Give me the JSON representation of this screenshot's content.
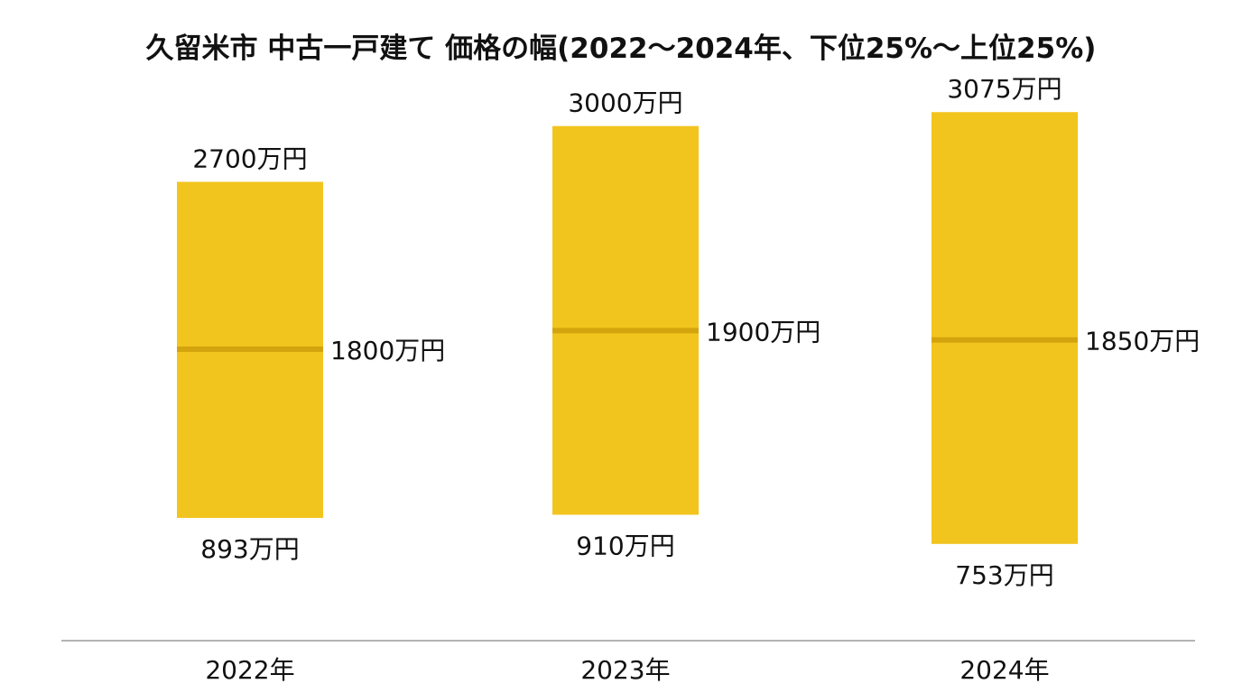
{
  "chart_data": {
    "type": "bar",
    "title": "久留米市 中古一戸建て 価格の幅(2022〜2024年、下位25%〜上位25%)",
    "xlabel": "",
    "ylabel": "",
    "unit": "万円",
    "categories": [
      "2022年",
      "2023年",
      "2024年"
    ],
    "series": [
      {
        "name": "",
        "values": [
          893,
          910,
          753
        ]
      },
      {
        "name": "",
        "values": [
          1800,
          1900,
          1850
        ]
      },
      {
        "name": "",
        "values": [
          2700,
          3000,
          3075
        ]
      }
    ],
    "labels": {
      "low": [
        "893万円",
        "910万円",
        "753万円"
      ],
      "median": [
        "1800万円",
        "1900万円",
        "1850万円"
      ],
      "high": [
        "2700万円",
        "3000万円",
        "3075万円"
      ]
    },
    "ylim": [
      0,
      3300
    ],
    "grid": false,
    "legend": "none"
  },
  "colors": {
    "bar": "#F2C41E",
    "median_line": "#D4A40E",
    "axis": "#9a9a9a"
  }
}
